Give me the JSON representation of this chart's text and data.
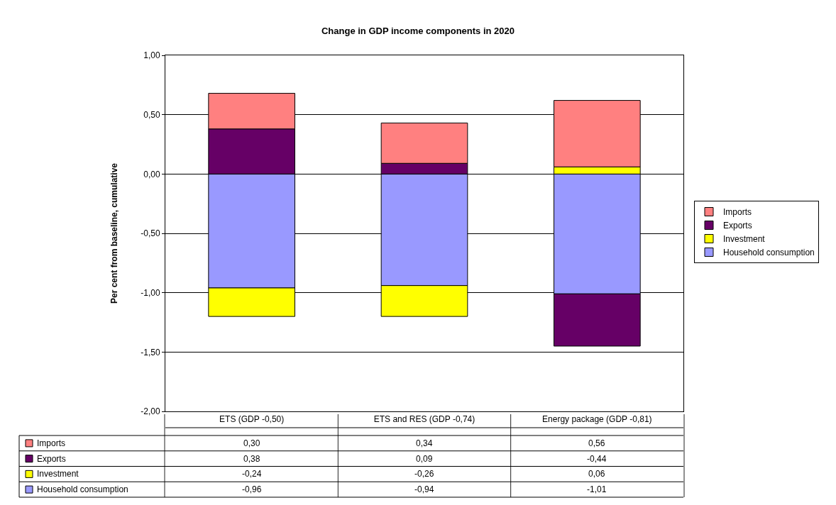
{
  "chart_data": {
    "type": "bar",
    "title": "Change in GDP income components in 2020",
    "ylabel": "Per cent from baseline, cumulative",
    "categories": [
      "ETS (GDP -0,50)",
      "ETS and RES (GDP -0,74)",
      "Energy package (GDP -0,81)"
    ],
    "stacked": true,
    "series": [
      {
        "name": "Household consumption",
        "color": "#9999ff",
        "values": [
          -0.96,
          -0.94,
          -1.01
        ],
        "value_labels": [
          "-0,96",
          "-0,94",
          "-1,01"
        ]
      },
      {
        "name": "Investment",
        "color": "#ffff00",
        "values": [
          -0.24,
          -0.26,
          0.06
        ],
        "value_labels": [
          "-0,24",
          "-0,26",
          "0,06"
        ]
      },
      {
        "name": "Exports",
        "color": "#660066",
        "values": [
          0.38,
          0.09,
          -0.44
        ],
        "value_labels": [
          "0,38",
          "0,09",
          "-0,44"
        ]
      },
      {
        "name": "Imports",
        "color": "#ff8080",
        "values": [
          0.3,
          0.34,
          0.56
        ],
        "value_labels": [
          "0,30",
          "0,34",
          "0,56"
        ]
      }
    ],
    "ylim": [
      -2.0,
      1.0
    ],
    "yticks": [
      {
        "value": -2.0,
        "label": "-2,00"
      },
      {
        "value": -1.5,
        "label": "-1,50"
      },
      {
        "value": -1.0,
        "label": "-1,00"
      },
      {
        "value": -0.5,
        "label": "-0,50"
      },
      {
        "value": 0.0,
        "label": "0,00"
      },
      {
        "value": 0.5,
        "label": "0,50"
      },
      {
        "value": 1.0,
        "label": "1,00"
      }
    ],
    "grid": "y",
    "legend": "right"
  }
}
